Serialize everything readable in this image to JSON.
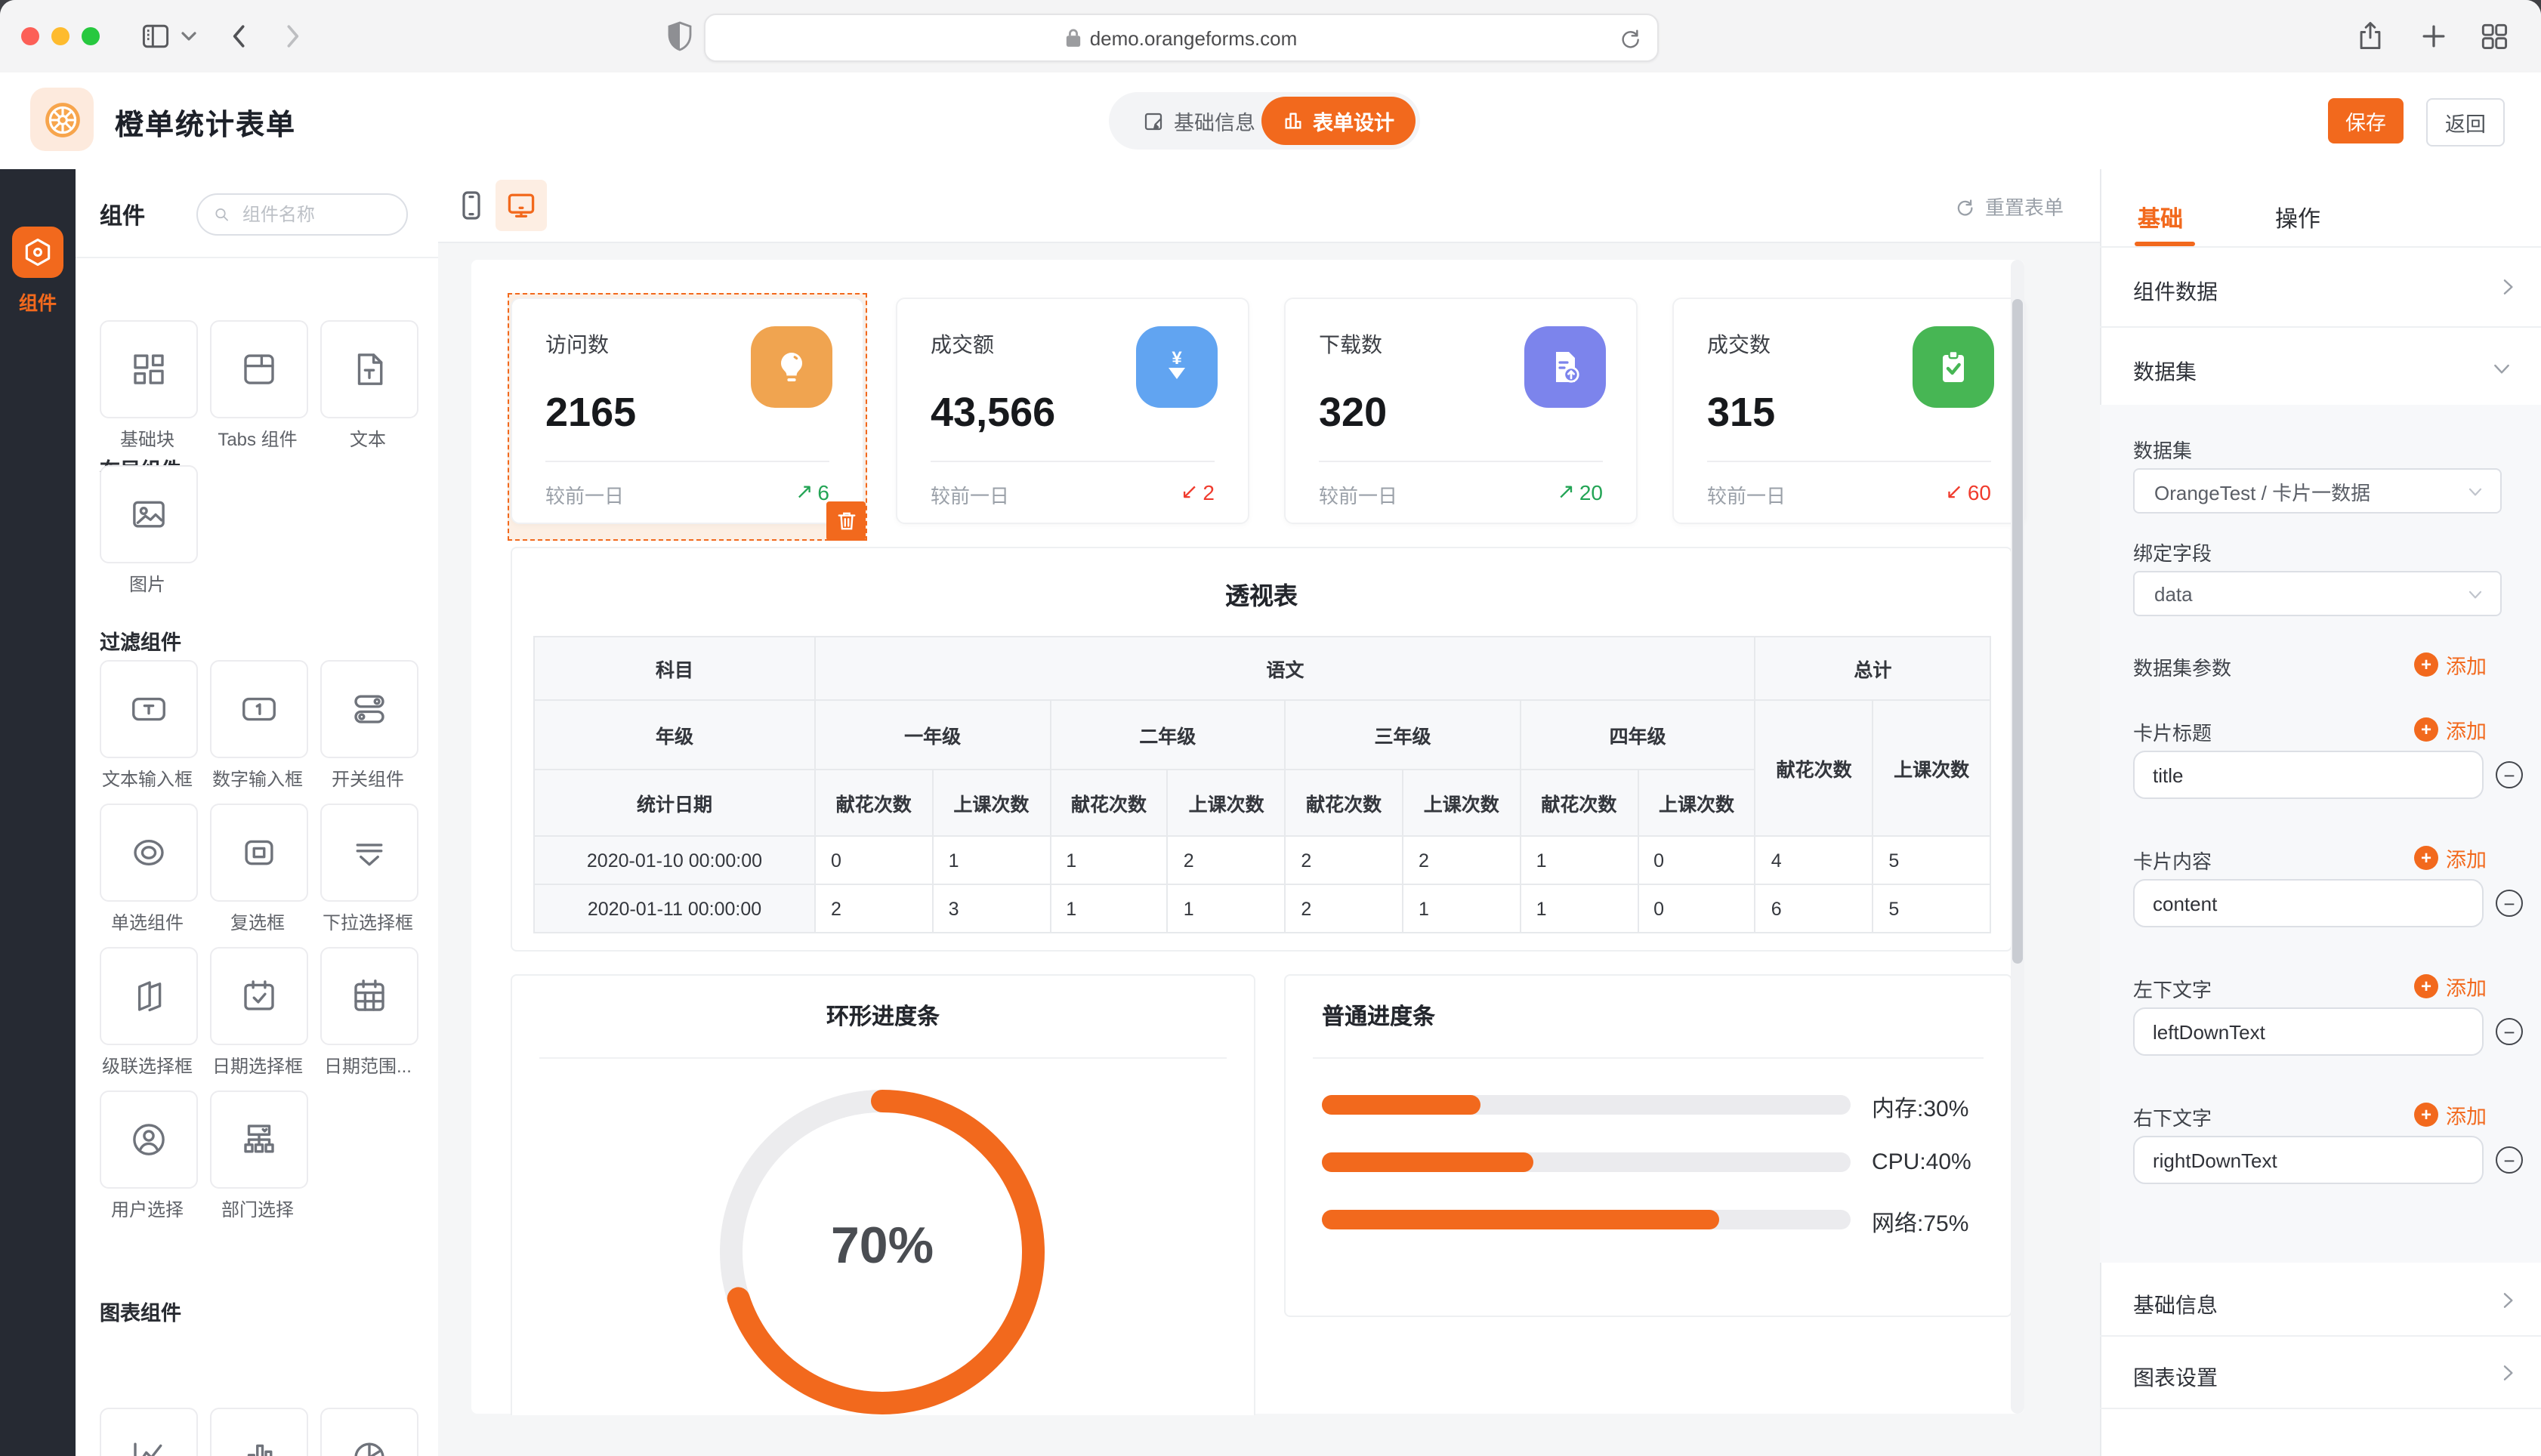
{
  "browser": {
    "url": "demo.orangeforms.com"
  },
  "header": {
    "title": "橙单统计表单",
    "tab_basic": "基础信息",
    "tab_design": "表单设计",
    "save": "保存",
    "back": "返回"
  },
  "rail": {
    "components": "组件"
  },
  "library": {
    "title": "组件",
    "search_placeholder": "组件名称",
    "section_layout": "布局组件",
    "layout_items": [
      "基础块",
      "Tabs 组件",
      "文本",
      "图片"
    ],
    "section_filter": "过滤组件",
    "filter_items": [
      "文本输入框",
      "数字输入框",
      "开关组件",
      "单选组件",
      "复选框",
      "下拉选择框",
      "级联选择框",
      "日期选择框",
      "日期范围...",
      "用户选择",
      "部门选择"
    ],
    "section_chart": "图表组件"
  },
  "canvas": {
    "reset": "重置表单"
  },
  "cards": [
    {
      "title": "访问数",
      "value": "2165",
      "compare": "较前一日",
      "trend_arrow": "↗",
      "trend_value": "6"
    },
    {
      "title": "成交额",
      "value": "43,566",
      "compare": "较前一日",
      "trend_arrow": "↙",
      "trend_value": "2"
    },
    {
      "title": "下载数",
      "value": "320",
      "compare": "较前一日",
      "trend_arrow": "↗",
      "trend_value": "20"
    },
    {
      "title": "成交数",
      "value": "315",
      "compare": "较前一日",
      "trend_arrow": "↙",
      "trend_value": "60"
    }
  ],
  "pivot": {
    "title": "透视表",
    "h_subject": "科目",
    "h_chinese": "语文",
    "h_total": "总计",
    "h_grade": "年级",
    "grades": [
      "一年级",
      "二年级",
      "三年级",
      "四年级"
    ],
    "h_flower": "献花次数",
    "h_lesson": "上课次数",
    "h_date": "统计日期",
    "rows": [
      {
        "date": "2020-01-10 00:00:00",
        "values": [
          "0",
          "1",
          "1",
          "2",
          "2",
          "2",
          "1",
          "0",
          "4",
          "5"
        ]
      },
      {
        "date": "2020-01-11 00:00:00",
        "values": [
          "2",
          "3",
          "1",
          "1",
          "2",
          "1",
          "1",
          "0",
          "6",
          "5"
        ]
      }
    ]
  },
  "ring": {
    "title": "环形进度条",
    "percent": 70,
    "label": "70%"
  },
  "bars": {
    "title": "普通进度条",
    "items": [
      {
        "name": "内存",
        "pct": 30,
        "label": "内存:30%"
      },
      {
        "name": "CPU",
        "pct": 40,
        "label": "CPU:40%"
      },
      {
        "name": "网络",
        "pct": 75,
        "label": "网络:75%"
      }
    ]
  },
  "inspector": {
    "tab_basic": "基础",
    "tab_action": "操作",
    "row_component_data": "组件数据",
    "row_dataset": "数据集",
    "dataset_label": "数据集",
    "dataset_value": "OrangeTest / 卡片一数据",
    "bind_label": "绑定字段",
    "bind_value": "data",
    "params_label": "数据集参数",
    "add": "添加",
    "card_title_label": "卡片标题",
    "card_title_value": "title",
    "card_content_label": "卡片内容",
    "card_content_value": "content",
    "left_text_label": "左下文字",
    "left_text_value": "leftDownText",
    "right_text_label": "右下文字",
    "right_text_value": "rightDownText",
    "row_basic_info": "基础信息",
    "row_chart_settings": "图表设置"
  },
  "colors": {
    "accent": "#f2691d",
    "amber": "#f0a450",
    "blue": "#61a4f1",
    "purple": "#7c84ec",
    "green": "#47b654",
    "trend_up": "#23a455",
    "trend_down": "#f03b2d"
  }
}
